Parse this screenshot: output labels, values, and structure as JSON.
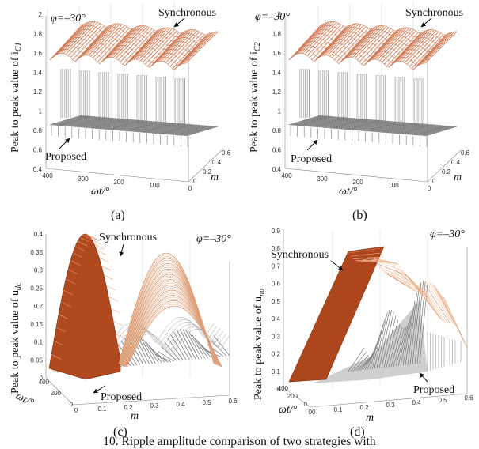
{
  "panels": [
    {
      "label": "(a)",
      "phi": "φ=–30°",
      "zlabel": "Peak to peak value of i",
      "zsub": "C1",
      "xlabel": "ωt/°",
      "ylabel": "m",
      "series": [
        {
          "name": "Synchronous",
          "color": "#d9825b"
        },
        {
          "name": "Proposed",
          "color": "#6e6e6e"
        }
      ],
      "zticks": [
        "0.4",
        "0.6",
        "0.8",
        "1",
        "1.2",
        "1.4",
        "1.6",
        "1.8",
        "2"
      ],
      "xticks": [
        "400",
        "300",
        "200",
        "100",
        "0"
      ],
      "yticks": [
        "0",
        "0.2",
        "0.4",
        "0.6"
      ]
    },
    {
      "label": "(b)",
      "phi": "φ=–30°",
      "zlabel": "Peak to peak value of i",
      "zsub": "C2",
      "xlabel": "ωt/°",
      "ylabel": "m",
      "series": [
        {
          "name": "Synchronous",
          "color": "#d9825b"
        },
        {
          "name": "Proposed",
          "color": "#6e6e6e"
        }
      ],
      "zticks": [
        "0.4",
        "0.6",
        "0.8",
        "1",
        "1.2",
        "1.4",
        "1.6",
        "1.8",
        "2"
      ],
      "xticks": [
        "400",
        "300",
        "200",
        "100",
        "0"
      ],
      "yticks": [
        "0",
        "0.2",
        "0.4",
        "0.6"
      ]
    },
    {
      "label": "(c)",
      "phi": "φ=–30°",
      "zlabel": "Peak to peak value of u",
      "zsub": "dc",
      "xlabel": "ωt/°",
      "ylabel": "m",
      "series": [
        {
          "name": "Synchronous",
          "color": "#b04a1e"
        },
        {
          "name": "Proposed",
          "color": "#7a7a7a"
        }
      ],
      "zticks": [
        "0",
        "0.05",
        "0.1",
        "0.15",
        "0.2",
        "0.25",
        "0.3",
        "0.35",
        "0.4"
      ],
      "xticks": [
        "400",
        "200",
        "0"
      ],
      "yticks": [
        "0",
        "0.1",
        "0.2",
        "0.3",
        "0.4",
        "0.5",
        "0.6"
      ]
    },
    {
      "label": "(d)",
      "phi": "φ=–30°",
      "zlabel": "Peak to peak value of u",
      "zsub": "np",
      "xlabel": "ωt/°",
      "ylabel": "m",
      "series": [
        {
          "name": "Synchronous",
          "color": "#a84018"
        },
        {
          "name": "Proposed",
          "color": "#7a7a7a"
        }
      ],
      "zticks": [
        "0",
        "0.1",
        "0.2",
        "0.3",
        "0.4",
        "0.5",
        "0.6",
        "0.7",
        "0.8",
        "0.9"
      ],
      "xticks": [
        "400",
        "200",
        "0"
      ],
      "yticks": [
        "00",
        "0.1",
        "0.2",
        "0.3",
        "0.4",
        "0.5",
        "0.6"
      ]
    }
  ],
  "caption": "10. Ripple amplitude comparison of two strategies with"
}
